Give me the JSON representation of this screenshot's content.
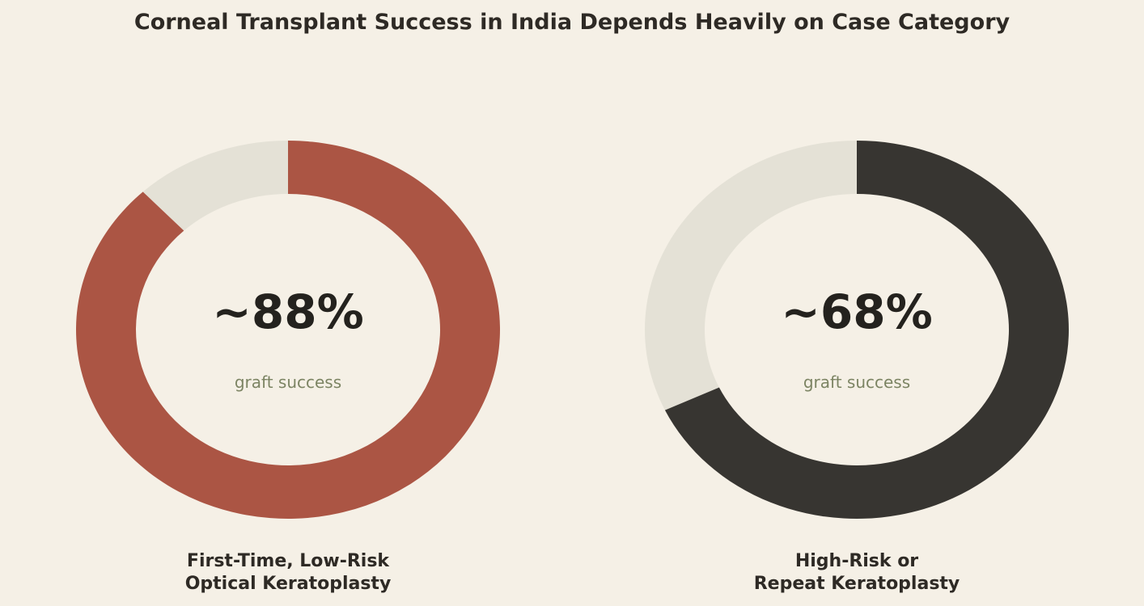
{
  "chart_data": {
    "type": "pie",
    "title": "Corneal Transplant Success in India Depends Heavily on Case Category",
    "charts": [
      {
        "label_lines": [
          "First-Time, Low-Risk",
          "Optical Keratoplasty"
        ],
        "value_display": "~88%",
        "value": 88,
        "sublabel": "graft success",
        "color": "#ab5544",
        "track_color": "#e4e1d6"
      },
      {
        "label_lines": [
          "High-Risk or",
          "Repeat Keratoplasty"
        ],
        "value_display": "~68%",
        "value": 68,
        "sublabel": "graft success",
        "color": "#373531",
        "track_color": "#e4e1d6"
      }
    ]
  },
  "colors": {
    "background": "#f5f0e6",
    "text": "#2e2a25",
    "sublabel": "#7c8463"
  }
}
